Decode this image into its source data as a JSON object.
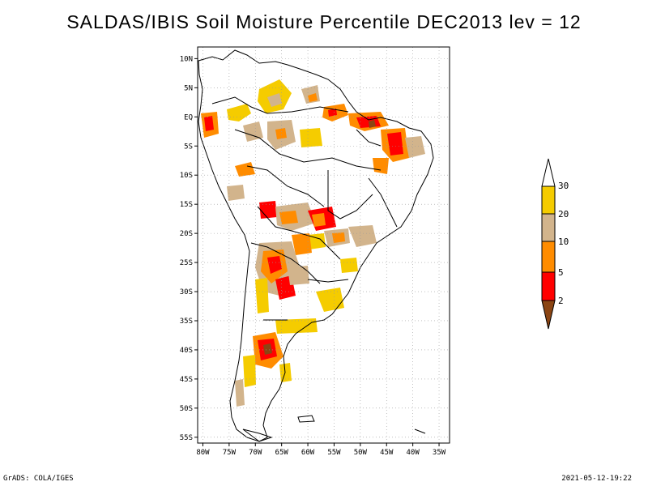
{
  "title": "SALDAS/IBIS Soil Moisture Percentile DEC2013 lev = 12",
  "map": {
    "lat_labels": [
      "10N",
      "5N",
      "EQ",
      "5S",
      "10S",
      "15S",
      "20S",
      "25S",
      "30S",
      "35S",
      "40S",
      "45S",
      "50S",
      "55S"
    ],
    "lon_labels": [
      "80W",
      "75W",
      "70W",
      "65W",
      "60W",
      "55W",
      "50W",
      "45W",
      "40W",
      "35W"
    ],
    "lat_range": [
      -56,
      12
    ],
    "lon_range": [
      -81,
      -33
    ],
    "grid": true,
    "grid_style": "dotted"
  },
  "legend": {
    "labels": [
      "30",
      "20",
      "10",
      "5",
      "2"
    ],
    "colors": {
      "above30": "#ffffff",
      "20to30": "#f5cc00",
      "10to20": "#d2b48c",
      "5to10": "#ff8c00",
      "2to5": "#ff0000",
      "below2": "#8b4513"
    }
  },
  "footer": {
    "left": "GrADS: COLA/IGES",
    "right": "2021-05-12-19:22"
  }
}
